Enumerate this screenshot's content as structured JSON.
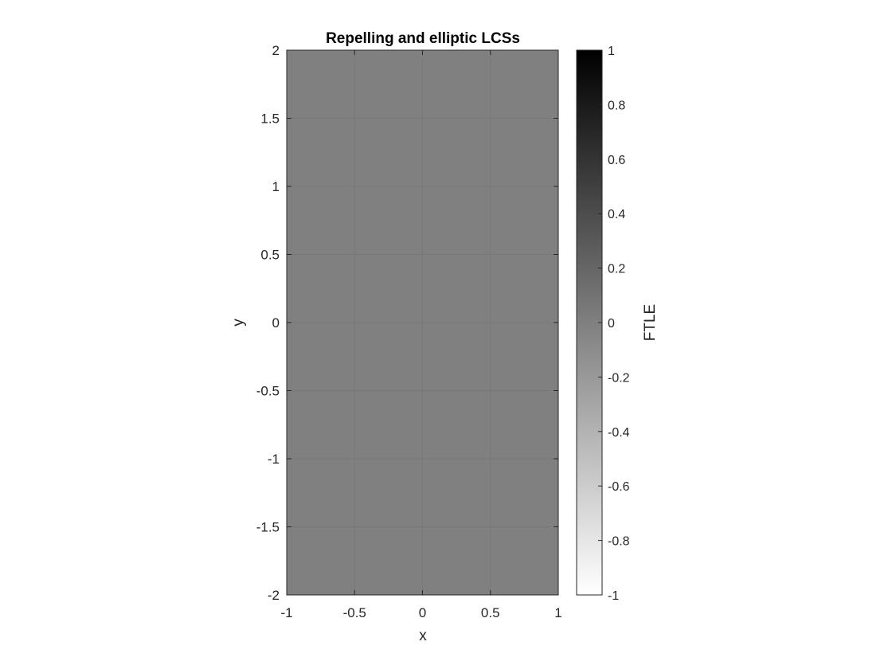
{
  "chart_data": {
    "type": "heatmap",
    "title": "Repelling and elliptic LCSs",
    "xlabel": "x",
    "ylabel": "y",
    "xlim": [
      -1,
      1
    ],
    "ylim": [
      -2,
      2
    ],
    "xticks": [
      -1,
      -0.5,
      0,
      0.5,
      1
    ],
    "xtick_labels": [
      "-1",
      "-0.5",
      "0",
      "0.5",
      "1"
    ],
    "yticks": [
      -2,
      -1.5,
      -1,
      -0.5,
      0,
      0.5,
      1,
      1.5,
      2
    ],
    "ytick_labels": [
      "-2",
      "-1.5",
      "-1",
      "-0.5",
      "0",
      "0.5",
      "1",
      "1.5",
      "2"
    ],
    "grid": true,
    "field_value": 0,
    "colormap": "gray-reversed",
    "colorbar": {
      "label": "FTLE",
      "limits": [
        -1,
        1
      ],
      "ticks": [
        -1,
        -0.8,
        -0.6,
        -0.4,
        -0.2,
        0,
        0.2,
        0.4,
        0.6,
        0.8,
        1
      ],
      "tick_labels": [
        "-1",
        "-0.8",
        "-0.6",
        "-0.4",
        "-0.2",
        "0",
        "0.2",
        "0.4",
        "0.6",
        "0.8",
        "1"
      ],
      "low_color": "#ffffff",
      "high_color": "#000000"
    },
    "field_color": "#808080",
    "grid_color": "#6e6e6e",
    "axis_color": "#262626"
  }
}
